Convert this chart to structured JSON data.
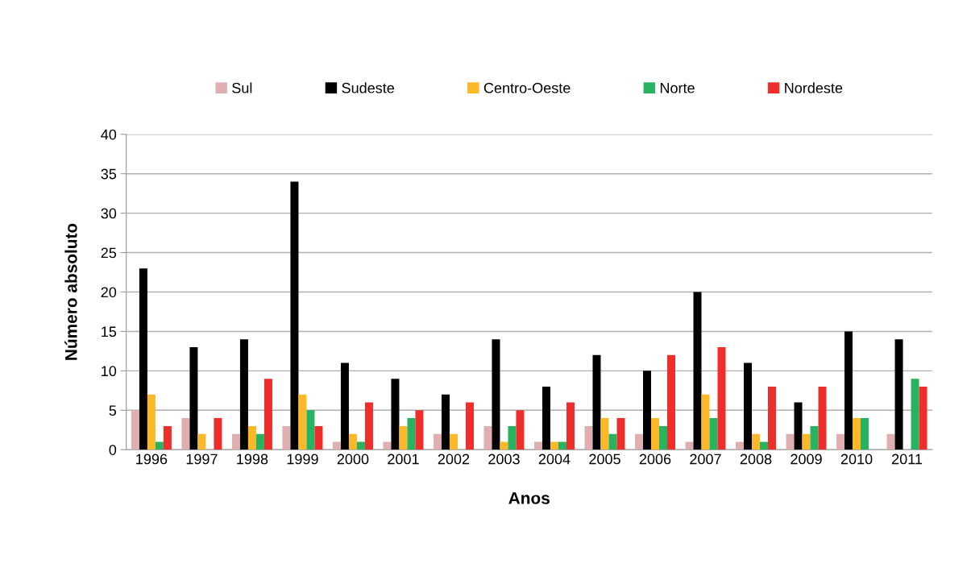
{
  "chart_data": {
    "type": "bar",
    "xlabel": "Anos",
    "ylabel": "Número absoluto",
    "categories": [
      "1996",
      "1997",
      "1998",
      "1999",
      "2000",
      "2001",
      "2002",
      "2003",
      "2004",
      "2005",
      "2006",
      "2007",
      "2008",
      "2009",
      "2010",
      "2011"
    ],
    "series": [
      {
        "name": "Sul",
        "color": "#e0b0b0",
        "values": [
          5,
          4,
          2,
          3,
          1,
          1,
          2,
          3,
          1,
          3,
          2,
          1,
          1,
          2,
          2,
          2
        ]
      },
      {
        "name": "Sudeste",
        "color": "#000000",
        "values": [
          23,
          13,
          14,
          34,
          11,
          9,
          7,
          14,
          8,
          12,
          10,
          20,
          11,
          6,
          15,
          14
        ]
      },
      {
        "name": "Centro-Oeste",
        "color": "#fbb829",
        "values": [
          7,
          2,
          3,
          7,
          2,
          3,
          2,
          1,
          1,
          4,
          4,
          7,
          2,
          2,
          4,
          0
        ]
      },
      {
        "name": "Norte",
        "color": "#27b35f",
        "values": [
          1,
          0,
          2,
          5,
          1,
          4,
          0,
          3,
          1,
          2,
          3,
          4,
          1,
          3,
          4,
          9
        ]
      },
      {
        "name": "Nordeste",
        "color": "#ee2e2a",
        "values": [
          3,
          4,
          9,
          3,
          6,
          5,
          6,
          5,
          6,
          4,
          12,
          13,
          8,
          8,
          0,
          8
        ]
      }
    ],
    "ylim": [
      0,
      40
    ],
    "yticks": [
      0,
      5,
      10,
      15,
      20,
      25,
      30,
      35,
      40
    ],
    "grid": "y",
    "legend": "top"
  }
}
